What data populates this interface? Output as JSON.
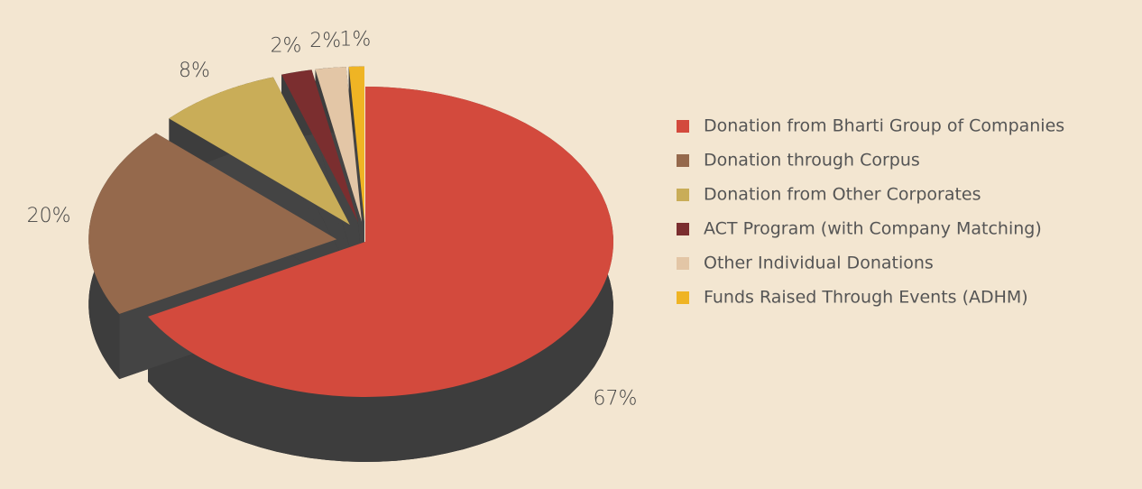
{
  "chart_data": {
    "type": "pie",
    "categories": [
      "Donation from Bharti Group of Companies",
      "Donation through Corpus",
      "Donation from Other Corporates",
      "ACT Program (with Company Matching)",
      "Other Individual Donations",
      "Funds Raised Through Events (ADHM)"
    ],
    "values": [
      67,
      20,
      8,
      2,
      2,
      1
    ],
    "value_labels": [
      "67%",
      "20%",
      "8%",
      "2%",
      "2%",
      "1%"
    ],
    "colors": [
      "#d34a3d",
      "#95694c",
      "#c9ad58",
      "#7b2e2f",
      "#e3c6a6",
      "#efb424"
    ],
    "legend": "right"
  }
}
